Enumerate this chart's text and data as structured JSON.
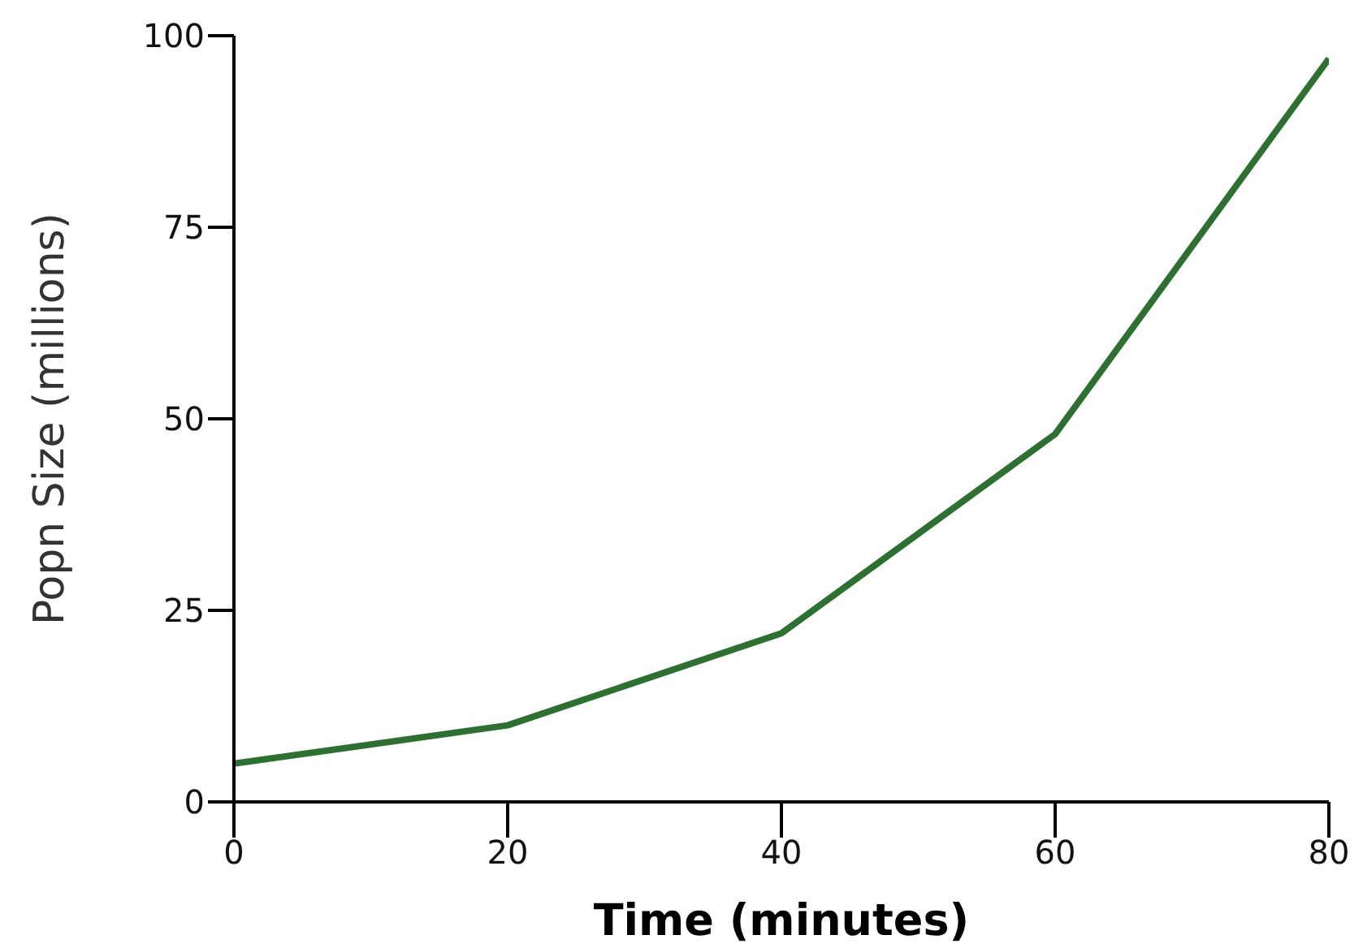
{
  "chart_data": {
    "type": "line",
    "xlabel": "Time (minutes)",
    "ylabel": "Popn Size (millions)",
    "x": [
      0,
      20,
      40,
      60,
      80
    ],
    "series": [
      {
        "color": "#2e7031",
        "values": [
          5,
          10,
          22,
          48,
          97
        ]
      }
    ],
    "xlim": [
      0,
      80
    ],
    "xticks": [
      0,
      20,
      40,
      60,
      80
    ],
    "ylim": [
      0,
      100
    ],
    "yticks": [
      0,
      25,
      50,
      75,
      100
    ],
    "grid": false,
    "legend": false,
    "marker": "none",
    "line_style": "solid"
  }
}
